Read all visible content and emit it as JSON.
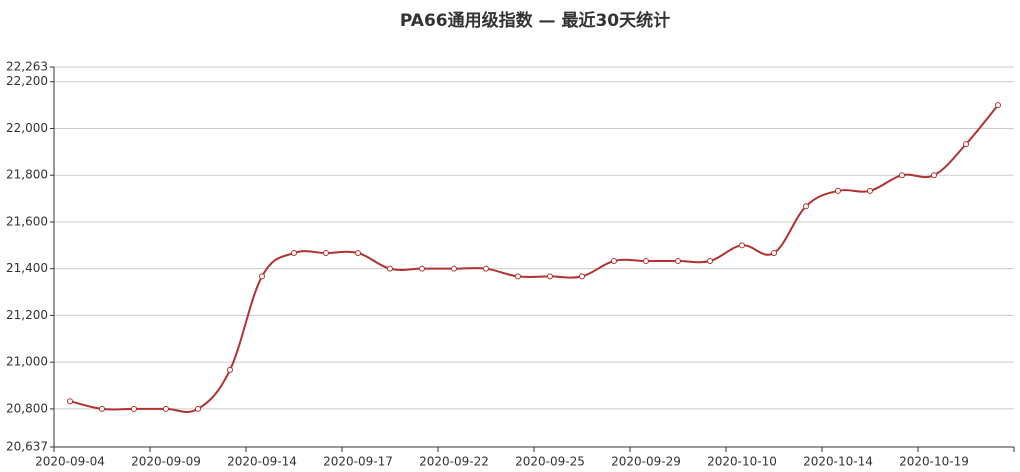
{
  "chart_data": {
    "type": "line",
    "title": "PA66通用级指数   —   最近30天统计",
    "categories": [
      "2020-09-04",
      null,
      null,
      "2020-09-09",
      null,
      null,
      "2020-09-14",
      null,
      null,
      "2020-09-17",
      null,
      null,
      "2020-09-22",
      null,
      null,
      "2020-09-25",
      null,
      null,
      "2020-09-29",
      null,
      null,
      "2020-10-10",
      null,
      null,
      "2020-10-14",
      null,
      null,
      "2020-10-19",
      null,
      null
    ],
    "series": [
      {
        "color": "#b03232",
        "values": [
          20833,
          20800,
          20800,
          20800,
          20800,
          20967,
          21367,
          21467,
          21467,
          21467,
          21400,
          21400,
          21400,
          21400,
          21367,
          21367,
          21367,
          21433,
          21433,
          21433,
          21433,
          21500,
          21467,
          21667,
          21733,
          21733,
          21800,
          21800,
          21933,
          22100
        ]
      }
    ],
    "ylim": [
      20637,
      22263
    ],
    "yticks": [
      {
        "value": 20637,
        "label": "20,637"
      },
      {
        "value": 20800,
        "label": "20,800"
      },
      {
        "value": 21000,
        "label": "21,000"
      },
      {
        "value": 21200,
        "label": "21,200"
      },
      {
        "value": 21400,
        "label": "21,400"
      },
      {
        "value": 21600,
        "label": "21,600"
      },
      {
        "value": 21800,
        "label": "21,800"
      },
      {
        "value": 22000,
        "label": "22,000"
      },
      {
        "value": 22200,
        "label": "22,200"
      },
      {
        "value": 22263,
        "label": "22,263"
      }
    ],
    "grid": true
  }
}
